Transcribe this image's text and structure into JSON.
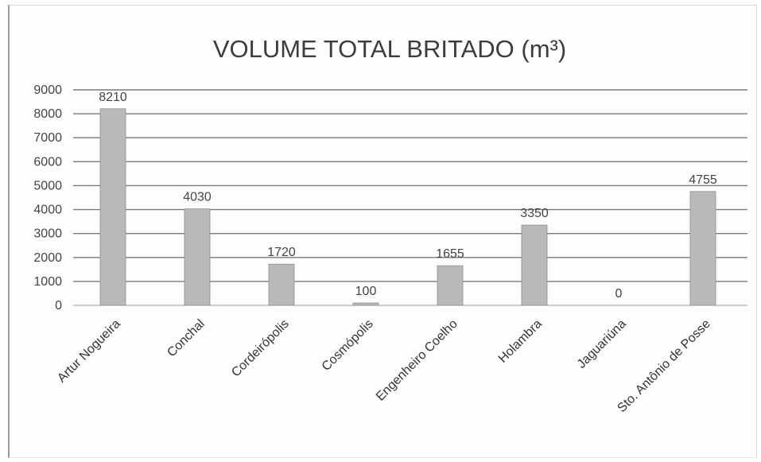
{
  "chart_data": {
    "type": "bar",
    "title": "VOLUME TOTAL BRITADO (m³)",
    "xlabel": "",
    "ylabel": "",
    "categories": [
      "Artur Nogueira",
      "Conchal",
      "Cordeirópolis",
      "Cosmópolis",
      "Engenheiro Coelho",
      "Holambra",
      "Jaguariúna",
      "Sto. Antônio de Posse"
    ],
    "values": [
      8210,
      4030,
      1720,
      100,
      1655,
      3350,
      0,
      4755
    ],
    "data_labels": [
      "8210",
      "4030",
      "1720",
      "100",
      "1655",
      "3350",
      "0",
      "4755"
    ],
    "ylim": [
      0,
      9000
    ],
    "yticks": [
      0,
      1000,
      2000,
      3000,
      4000,
      5000,
      6000,
      7000,
      8000,
      9000
    ],
    "grid": true,
    "legend": "none",
    "colors": {
      "bar": "#b9b9b9",
      "bar_edge": "#8f8f8f",
      "grid": "#7a7a7a",
      "text": "#444444"
    }
  }
}
